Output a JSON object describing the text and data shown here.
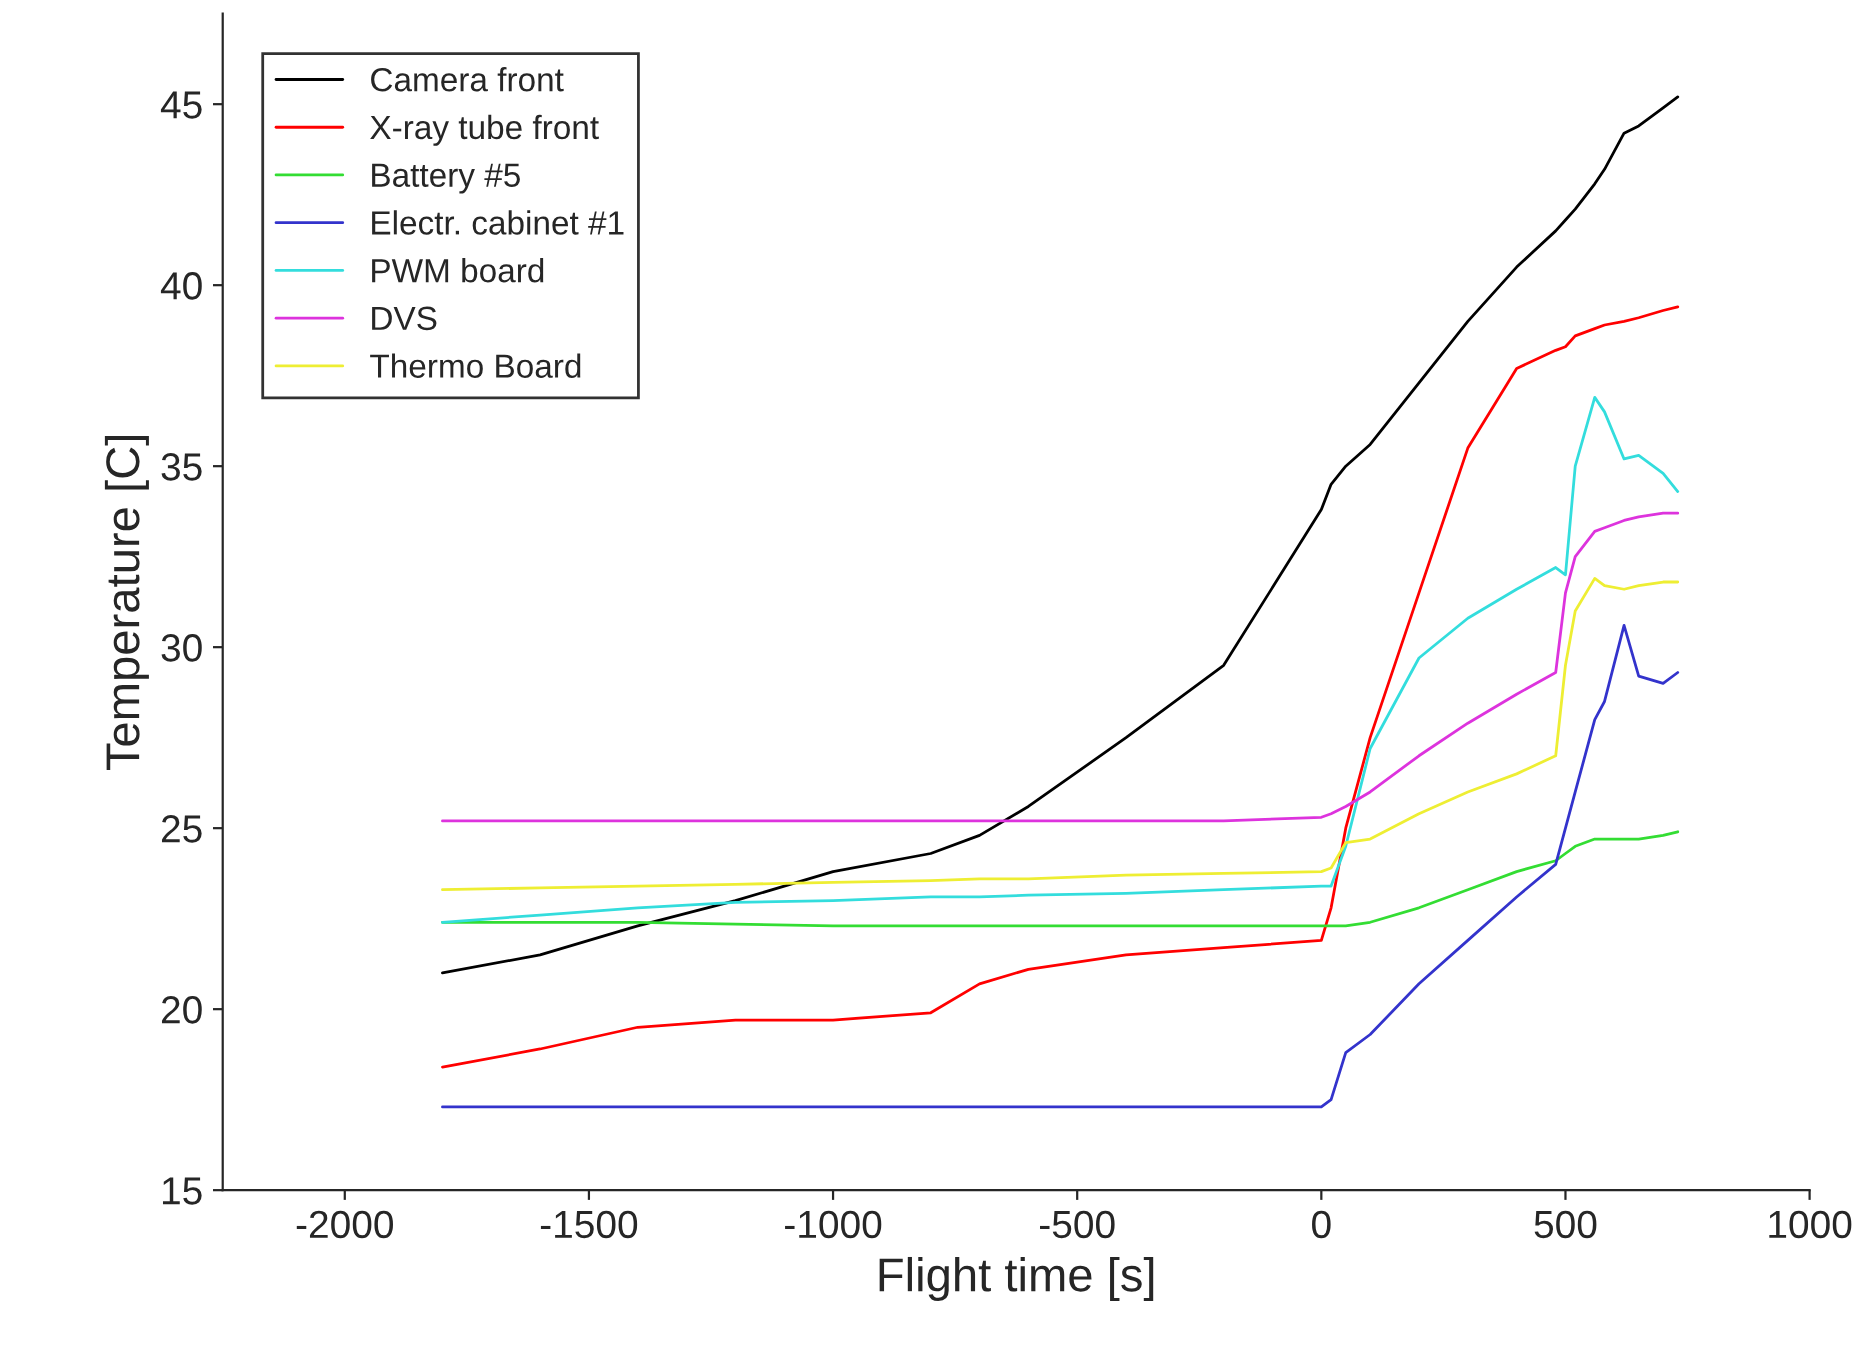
{
  "chart_data": {
    "type": "line",
    "xlabel": "Flight time [s]",
    "ylabel": "Temperature [C]",
    "x": [
      -1800,
      -1600,
      -1400,
      -1200,
      -1000,
      -800,
      -700,
      -600,
      -400,
      -200,
      0,
      20,
      50,
      100,
      200,
      300,
      400,
      480,
      500,
      520,
      560,
      580,
      620,
      650,
      700,
      730
    ],
    "series": [
      {
        "name": "Camera front",
        "color": "#000000",
        "values": [
          21.0,
          21.5,
          22.3,
          23.0,
          23.8,
          24.3,
          24.8,
          25.6,
          27.5,
          29.5,
          33.8,
          34.5,
          35.0,
          35.6,
          37.3,
          39.0,
          40.5,
          41.5,
          41.8,
          42.1,
          42.8,
          43.2,
          44.2,
          44.4,
          44.9,
          45.2
        ]
      },
      {
        "name": "X-ray tube front",
        "color": "#ff0000",
        "values": [
          18.4,
          18.9,
          19.5,
          19.7,
          19.7,
          19.9,
          20.7,
          21.1,
          21.5,
          21.7,
          21.9,
          22.8,
          25.0,
          27.5,
          31.5,
          35.5,
          37.7,
          38.2,
          38.3,
          38.6,
          38.8,
          38.9,
          39.0,
          39.1,
          39.3,
          39.4
        ]
      },
      {
        "name": "Battery #5",
        "color": "#33dd33",
        "values": [
          22.4,
          22.4,
          22.4,
          22.35,
          22.3,
          22.3,
          22.3,
          22.3,
          22.3,
          22.3,
          22.3,
          22.3,
          22.3,
          22.4,
          22.8,
          23.3,
          23.8,
          24.1,
          24.3,
          24.5,
          24.7,
          24.7,
          24.7,
          24.7,
          24.8,
          24.9
        ]
      },
      {
        "name": "Electr. cabinet #1",
        "color": "#3333cc",
        "values": [
          17.3,
          17.3,
          17.3,
          17.3,
          17.3,
          17.3,
          17.3,
          17.3,
          17.3,
          17.3,
          17.3,
          17.5,
          18.8,
          19.3,
          20.7,
          21.9,
          23.1,
          24.0,
          25.0,
          26.0,
          28.0,
          28.5,
          30.6,
          29.2,
          29.0,
          29.3
        ]
      },
      {
        "name": "PWM board",
        "color": "#33dddd",
        "values": [
          22.4,
          22.6,
          22.8,
          22.95,
          23.0,
          23.1,
          23.1,
          23.15,
          23.2,
          23.3,
          23.4,
          23.4,
          24.5,
          27.2,
          29.7,
          30.8,
          31.6,
          32.2,
          32.0,
          35.0,
          36.9,
          36.5,
          35.2,
          35.3,
          34.8,
          34.3
        ]
      },
      {
        "name": "DVS",
        "color": "#dd33dd",
        "values": [
          25.2,
          25.2,
          25.2,
          25.2,
          25.2,
          25.2,
          25.2,
          25.2,
          25.2,
          25.2,
          25.3,
          25.4,
          25.6,
          26.0,
          27.0,
          27.9,
          28.7,
          29.3,
          31.5,
          32.5,
          33.2,
          33.3,
          33.5,
          33.6,
          33.7,
          33.7
        ]
      },
      {
        "name": "Thermo Board",
        "color": "#eeee33",
        "values": [
          23.3,
          23.35,
          23.4,
          23.45,
          23.5,
          23.55,
          23.6,
          23.6,
          23.7,
          23.75,
          23.8,
          23.9,
          24.6,
          24.7,
          25.4,
          26.0,
          26.5,
          27.0,
          29.5,
          31.0,
          31.9,
          31.7,
          31.6,
          31.7,
          31.8,
          31.8
        ]
      }
    ],
    "xlim": [
      -2250,
      1000
    ],
    "ylim": [
      15,
      47.5
    ],
    "xticks": [
      -2000,
      -1500,
      -1000,
      -500,
      0,
      500,
      1000
    ],
    "yticks": [
      15,
      20,
      25,
      30,
      35,
      40,
      45
    ],
    "legend": "top left",
    "grid": false,
    "marker": "none",
    "line_style": "solid"
  }
}
